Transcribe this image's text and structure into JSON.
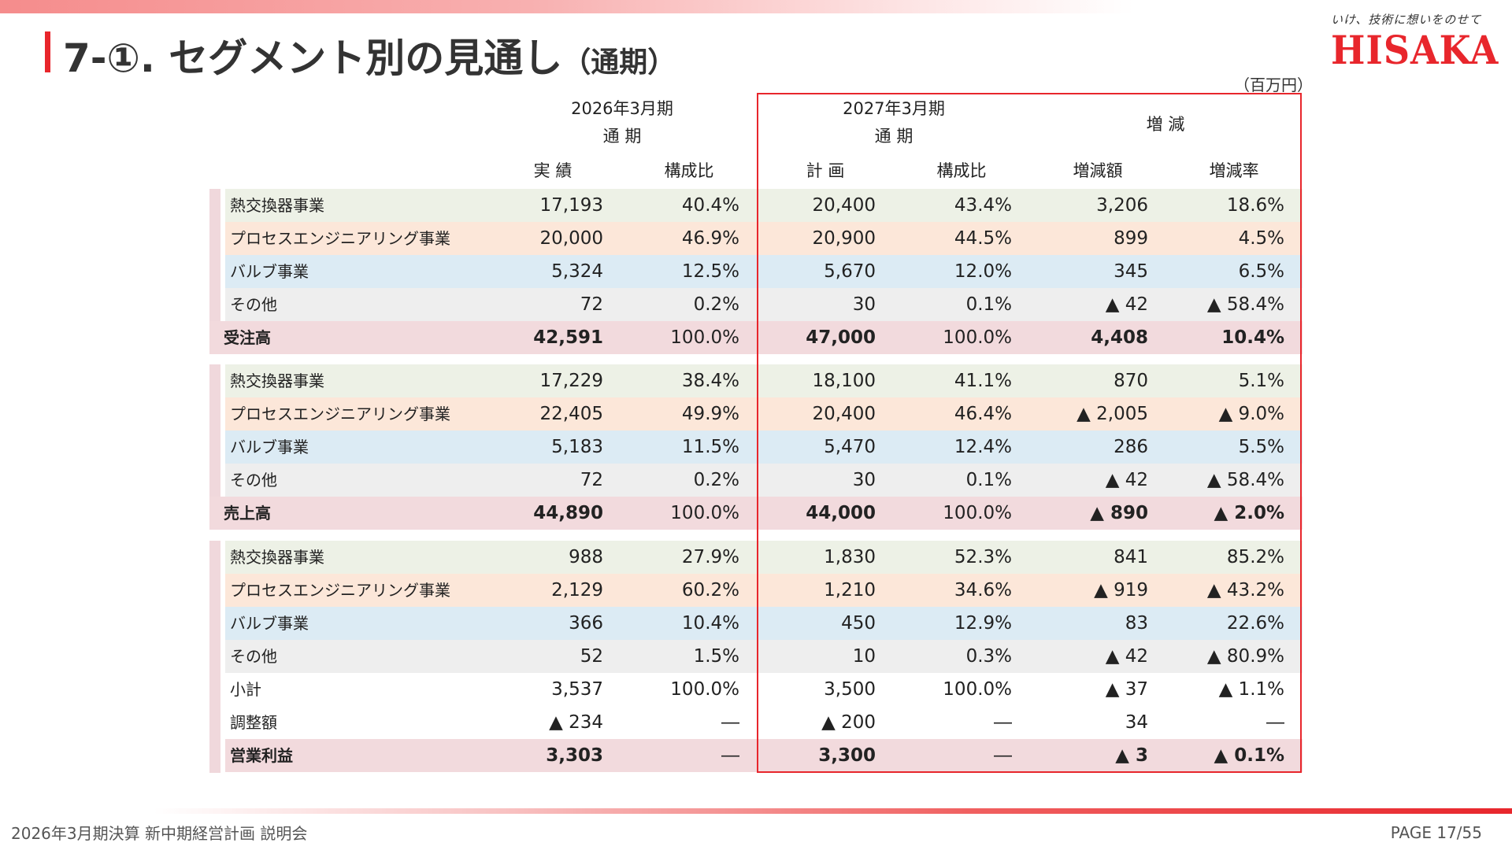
{
  "title": {
    "main": "7-①. セグメント別の見通し",
    "sub": "（通期）"
  },
  "logo": {
    "tagline": "いけ、技術に想いをのせて",
    "name": "HISAKA"
  },
  "unit": "（百万円）",
  "headers": {
    "fy2026_period": "2026年3月期",
    "fy2026_term": "通 期",
    "fy2027_period": "2027年3月期",
    "fy2027_term": "通 期",
    "change": "増 減",
    "actual": "実 績",
    "ratio1": "構成比",
    "plan": "計 画",
    "ratio2": "構成比",
    "change_amount": "増減額",
    "change_rate": "増減率"
  },
  "colors": {
    "heat": "#edf1e6",
    "process": "#fce7d9",
    "valve": "#dcebf4",
    "other": "#eeeeee",
    "total": "#f2dadd",
    "accent": "#e8262c"
  },
  "rows": [
    {
      "label": "熱交換器事業",
      "v": [
        "17,193",
        "40.4%",
        "20,400",
        "43.4%",
        "3,206",
        "18.6%"
      ]
    },
    {
      "label": "プロセスエンジニアリング事業",
      "v": [
        "20,000",
        "46.9%",
        "20,900",
        "44.5%",
        "899",
        "4.5%"
      ]
    },
    {
      "label": "バルブ事業",
      "v": [
        "5,324",
        "12.5%",
        "5,670",
        "12.0%",
        "345",
        "6.5%"
      ]
    },
    {
      "label": "その他",
      "v": [
        "72",
        "0.2%",
        "30",
        "0.1%",
        "▲ 42",
        "▲ 58.4%"
      ]
    },
    {
      "label": "受注高",
      "v": [
        "42,591",
        "100.0%",
        "47,000",
        "100.0%",
        "4,408",
        "10.4%"
      ]
    },
    {
      "label": "熱交換器事業",
      "v": [
        "17,229",
        "38.4%",
        "18,100",
        "41.1%",
        "870",
        "5.1%"
      ]
    },
    {
      "label": "プロセスエンジニアリング事業",
      "v": [
        "22,405",
        "49.9%",
        "20,400",
        "46.4%",
        "▲ 2,005",
        "▲ 9.0%"
      ]
    },
    {
      "label": "バルブ事業",
      "v": [
        "5,183",
        "11.5%",
        "5,470",
        "12.4%",
        "286",
        "5.5%"
      ]
    },
    {
      "label": "その他",
      "v": [
        "72",
        "0.2%",
        "30",
        "0.1%",
        "▲ 42",
        "▲ 58.4%"
      ]
    },
    {
      "label": "売上高",
      "v": [
        "44,890",
        "100.0%",
        "44,000",
        "100.0%",
        "▲ 890",
        "▲ 2.0%"
      ]
    },
    {
      "label": "熱交換器事業",
      "v": [
        "988",
        "27.9%",
        "1,830",
        "52.3%",
        "841",
        "85.2%"
      ]
    },
    {
      "label": "プロセスエンジニアリング事業",
      "v": [
        "2,129",
        "60.2%",
        "1,210",
        "34.6%",
        "▲ 919",
        "▲ 43.2%"
      ]
    },
    {
      "label": "バルブ事業",
      "v": [
        "366",
        "10.4%",
        "450",
        "12.9%",
        "83",
        "22.6%"
      ]
    },
    {
      "label": "その他",
      "v": [
        "52",
        "1.5%",
        "10",
        "0.3%",
        "▲ 42",
        "▲ 80.9%"
      ]
    },
    {
      "label": "小計",
      "v": [
        "3,537",
        "100.0%",
        "3,500",
        "100.0%",
        "▲ 37",
        "▲ 1.1%"
      ]
    },
    {
      "label": "調整額",
      "v": [
        "▲ 234",
        "―",
        "▲ 200",
        "―",
        "34",
        "―"
      ]
    },
    {
      "label": "営業利益",
      "v": [
        "3,303",
        "―",
        "3,300",
        "―",
        "▲ 3",
        "▲ 0.1%"
      ]
    }
  ],
  "footer": {
    "left": "2026年3月期決算 新中期経営計画 説明会",
    "right": "PAGE 17/55"
  }
}
